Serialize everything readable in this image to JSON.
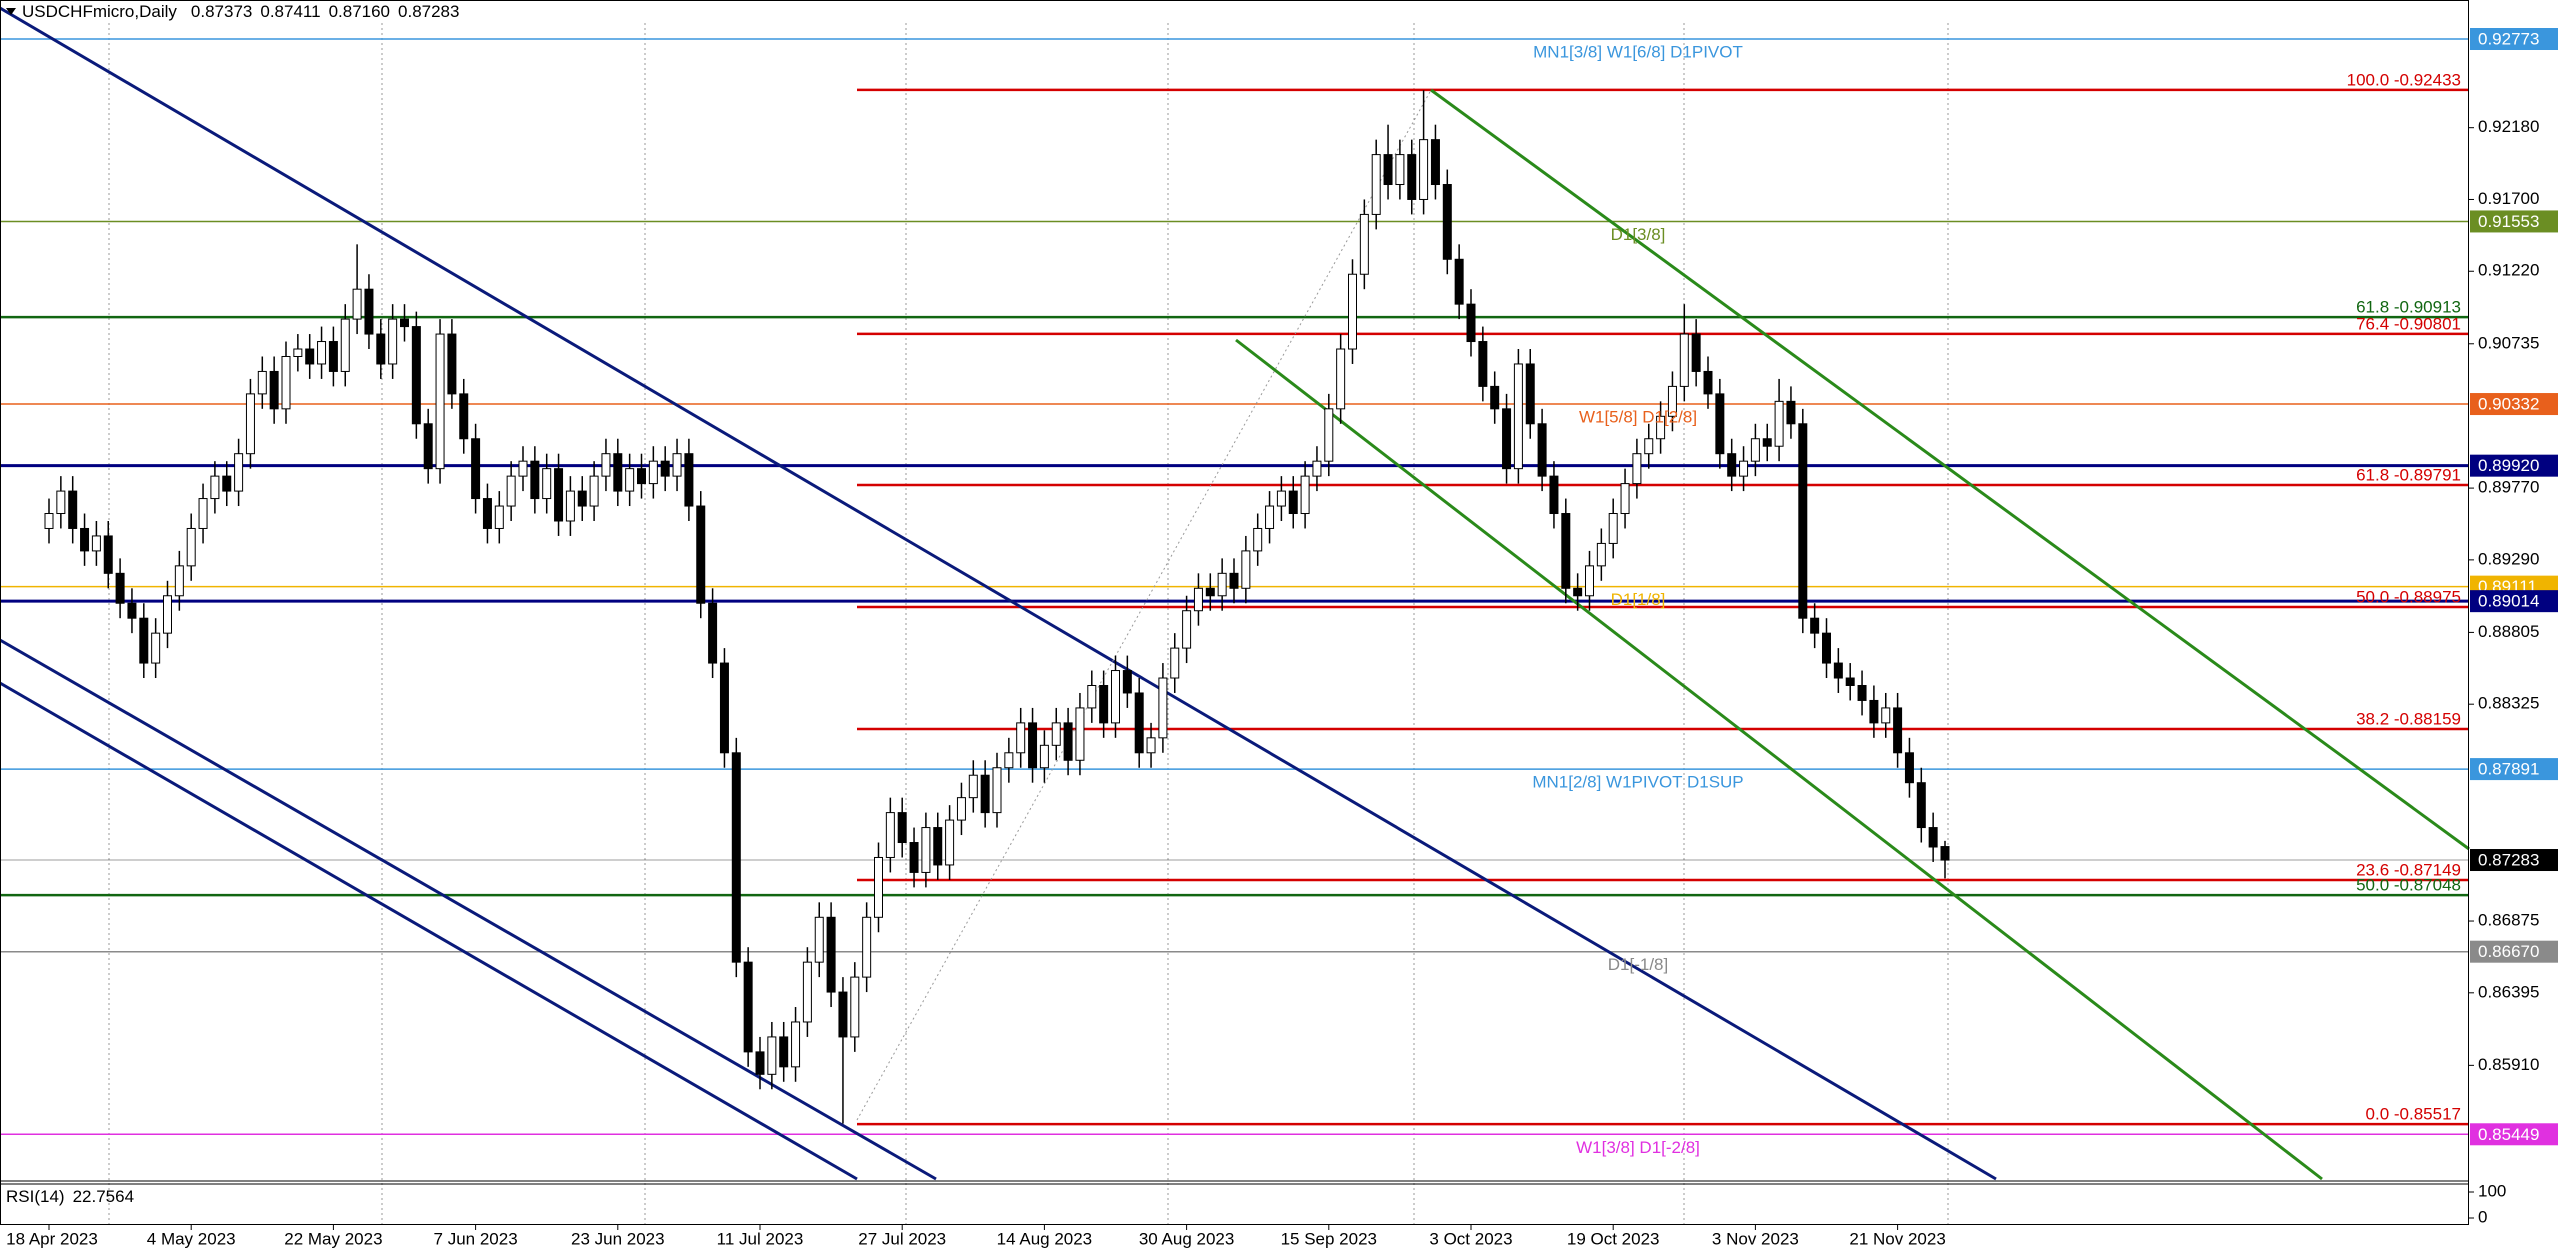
{
  "header": {
    "symbol": "USDCHFmicro,Daily",
    "ohlc": [
      "0.87373",
      "0.87411",
      "0.87160",
      "0.87283"
    ]
  },
  "chart_data": {
    "type": "candlestick",
    "ylim": [
      0.8515,
      0.9288
    ],
    "yticks": [
      {
        "value": 0.9218,
        "label": "0.92180"
      },
      {
        "value": 0.917,
        "label": "0.91700"
      },
      {
        "value": 0.9122,
        "label": "0.91220"
      },
      {
        "value": 0.90735,
        "label": "0.90735"
      },
      {
        "value": 0.8977,
        "label": "0.89770"
      },
      {
        "value": 0.8929,
        "label": "0.89290"
      },
      {
        "value": 0.88805,
        "label": "0.88805"
      },
      {
        "value": 0.88325,
        "label": "0.88325"
      },
      {
        "value": 0.86875,
        "label": "0.86875"
      },
      {
        "value": 0.86395,
        "label": "0.86395"
      },
      {
        "value": 0.8591,
        "label": "0.85910"
      }
    ],
    "categories": [
      "18 Apr 2023",
      null,
      null,
      null,
      null,
      null,
      null,
      null,
      null,
      null,
      null,
      null,
      "4 May 2023",
      null,
      null,
      null,
      null,
      null,
      null,
      null,
      null,
      null,
      null,
      null,
      "22 May 2023",
      null,
      null,
      null,
      null,
      null,
      null,
      null,
      null,
      null,
      null,
      null,
      "7 Jun 2023",
      null,
      null,
      null,
      null,
      null,
      null,
      null,
      null,
      null,
      null,
      null,
      "23 Jun 2023",
      null,
      null,
      null,
      null,
      null,
      null,
      null,
      null,
      null,
      null,
      null,
      "11 Jul 2023",
      null,
      null,
      null,
      null,
      null,
      null,
      null,
      null,
      null,
      null,
      null,
      "27 Jul 2023",
      null,
      null,
      null,
      null,
      null,
      null,
      null,
      null,
      null,
      null,
      null,
      "14 Aug 2023",
      null,
      null,
      null,
      null,
      null,
      null,
      null,
      null,
      null,
      null,
      null,
      "30 Aug 2023",
      null,
      null,
      null,
      null,
      null,
      null,
      null,
      null,
      null,
      null,
      null,
      "15 Sep 2023",
      null,
      null,
      null,
      null,
      null,
      null,
      null,
      null,
      null,
      null,
      null,
      "3 Oct 2023",
      null,
      null,
      null,
      null,
      null,
      null,
      null,
      null,
      null,
      null,
      null,
      "19 Oct 2023",
      null,
      null,
      null,
      null,
      null,
      null,
      null,
      null,
      null,
      null,
      null,
      "3 Nov 2023",
      null,
      null,
      null,
      null,
      null,
      null,
      null,
      null,
      null,
      null,
      null,
      "21 Nov 2023",
      null,
      null,
      null,
      null
    ],
    "open": [
      0.895,
      0.896,
      0.8975,
      0.895,
      0.8935,
      0.8945,
      0.892,
      0.89,
      0.889,
      0.886,
      0.888,
      0.8905,
      0.8925,
      0.895,
      0.897,
      0.8985,
      0.8975,
      0.9,
      0.904,
      0.9055,
      0.903,
      0.9065,
      0.907,
      0.906,
      0.9075,
      0.9055,
      0.909,
      0.911,
      0.908,
      0.906,
      0.909,
      0.9085,
      0.902,
      0.899,
      0.908,
      0.904,
      0.901,
      0.897,
      0.895,
      0.8965,
      0.8985,
      0.8995,
      0.897,
      0.899,
      0.8955,
      0.8975,
      0.8965,
      0.8985,
      0.9,
      0.8975,
      0.899,
      0.898,
      0.8995,
      0.8985,
      0.9,
      0.8965,
      0.89,
      0.886,
      0.88,
      0.866,
      0.86,
      0.8585,
      0.861,
      0.859,
      0.862,
      0.866,
      0.869,
      0.864,
      0.861,
      0.865,
      0.869,
      0.873,
      0.876,
      0.874,
      0.872,
      0.875,
      0.8725,
      0.8755,
      0.877,
      0.8785,
      0.876,
      0.879,
      0.88,
      0.882,
      0.879,
      0.8805,
      0.882,
      0.8795,
      0.883,
      0.8845,
      0.882,
      0.8855,
      0.884,
      0.88,
      0.881,
      0.885,
      0.887,
      0.8895,
      0.891,
      0.8905,
      0.892,
      0.891,
      0.8935,
      0.895,
      0.8965,
      0.8975,
      0.896,
      0.8985,
      0.8995,
      0.903,
      0.907,
      0.912,
      0.916,
      0.92,
      0.918,
      0.92,
      0.917,
      0.921,
      0.918,
      0.913,
      0.91,
      0.9075,
      0.9045,
      0.903,
      0.899,
      0.906,
      0.902,
      0.8985,
      0.896,
      0.891,
      0.8905,
      0.8925,
      0.894,
      0.896,
      0.898,
      0.9,
      0.901,
      0.9025,
      0.9045,
      0.908,
      0.9055,
      0.904,
      0.9,
      0.8985,
      0.8995,
      0.901,
      0.9005,
      0.9035,
      0.902,
      0.889,
      0.888,
      0.886,
      0.885,
      0.8845,
      0.8835,
      0.882,
      0.883,
      0.88,
      0.878,
      0.875,
      0.87373
    ],
    "high": [
      0.897,
      0.8985,
      0.8985,
      0.896,
      0.8955,
      0.8955,
      0.893,
      0.891,
      0.89,
      0.889,
      0.8915,
      0.8935,
      0.896,
      0.898,
      0.8995,
      0.8995,
      0.901,
      0.905,
      0.9065,
      0.9065,
      0.9075,
      0.908,
      0.908,
      0.9085,
      0.9085,
      0.91,
      0.914,
      0.912,
      0.909,
      0.91,
      0.91,
      0.9095,
      0.903,
      0.909,
      0.909,
      0.905,
      0.902,
      0.898,
      0.8975,
      0.8995,
      0.9005,
      0.9005,
      0.9,
      0.9,
      0.8985,
      0.8985,
      0.8995,
      0.901,
      0.901,
      0.9,
      0.9,
      0.9005,
      0.9005,
      0.901,
      0.901,
      0.8975,
      0.891,
      0.887,
      0.881,
      0.867,
      0.861,
      0.862,
      0.862,
      0.863,
      0.867,
      0.87,
      0.87,
      0.865,
      0.866,
      0.87,
      0.874,
      0.877,
      0.877,
      0.875,
      0.876,
      0.876,
      0.8765,
      0.878,
      0.8795,
      0.8795,
      0.88,
      0.881,
      0.883,
      0.883,
      0.8815,
      0.883,
      0.883,
      0.884,
      0.8855,
      0.8855,
      0.8865,
      0.8865,
      0.885,
      0.882,
      0.886,
      0.888,
      0.8905,
      0.892,
      0.892,
      0.893,
      0.893,
      0.8945,
      0.896,
      0.8975,
      0.8985,
      0.8985,
      0.8995,
      0.9005,
      0.904,
      0.908,
      0.913,
      0.917,
      0.921,
      0.922,
      0.921,
      0.921,
      0.9243,
      0.922,
      0.919,
      0.914,
      0.911,
      0.9085,
      0.9055,
      0.904,
      0.907,
      0.907,
      0.903,
      0.8995,
      0.897,
      0.892,
      0.8935,
      0.895,
      0.897,
      0.899,
      0.901,
      0.902,
      0.9035,
      0.9055,
      0.91,
      0.909,
      0.9065,
      0.905,
      0.901,
      0.9005,
      0.902,
      0.902,
      0.905,
      0.9045,
      0.903,
      0.89,
      0.889,
      0.887,
      0.886,
      0.8855,
      0.8845,
      0.884,
      0.884,
      0.881,
      0.879,
      0.876,
      0.87411
    ],
    "low": [
      0.894,
      0.895,
      0.894,
      0.8925,
      0.8925,
      0.891,
      0.889,
      0.888,
      0.885,
      0.885,
      0.887,
      0.8895,
      0.8915,
      0.894,
      0.896,
      0.8965,
      0.8965,
      0.899,
      0.903,
      0.902,
      0.902,
      0.9055,
      0.905,
      0.905,
      0.9045,
      0.9045,
      0.908,
      0.907,
      0.905,
      0.905,
      0.9075,
      0.901,
      0.898,
      0.898,
      0.903,
      0.9,
      0.896,
      0.894,
      0.894,
      0.8955,
      0.8975,
      0.896,
      0.896,
      0.8945,
      0.8945,
      0.8955,
      0.8955,
      0.8975,
      0.8965,
      0.8965,
      0.897,
      0.897,
      0.8975,
      0.8975,
      0.8955,
      0.889,
      0.885,
      0.879,
      0.865,
      0.859,
      0.8575,
      0.8575,
      0.858,
      0.858,
      0.861,
      0.865,
      0.863,
      0.8552,
      0.86,
      0.864,
      0.868,
      0.872,
      0.873,
      0.871,
      0.871,
      0.8715,
      0.8715,
      0.8745,
      0.876,
      0.875,
      0.875,
      0.878,
      0.879,
      0.878,
      0.878,
      0.8795,
      0.8785,
      0.8785,
      0.882,
      0.881,
      0.881,
      0.883,
      0.879,
      0.879,
      0.88,
      0.884,
      0.886,
      0.8885,
      0.8895,
      0.8895,
      0.89,
      0.89,
      0.8925,
      0.894,
      0.8955,
      0.895,
      0.895,
      0.8975,
      0.8985,
      0.902,
      0.906,
      0.911,
      0.915,
      0.917,
      0.917,
      0.916,
      0.916,
      0.917,
      0.912,
      0.909,
      0.9065,
      0.9035,
      0.902,
      0.898,
      0.898,
      0.901,
      0.8975,
      0.895,
      0.89,
      0.8895,
      0.8895,
      0.8915,
      0.893,
      0.895,
      0.897,
      0.899,
      0.9,
      0.9015,
      0.9035,
      0.9045,
      0.903,
      0.899,
      0.8975,
      0.8975,
      0.8985,
      0.8995,
      0.8995,
      0.901,
      0.888,
      0.887,
      0.885,
      0.884,
      0.8835,
      0.8825,
      0.881,
      0.881,
      0.879,
      0.877,
      0.874,
      0.8727,
      0.8716
    ],
    "close": [
      0.896,
      0.8975,
      0.895,
      0.8935,
      0.8945,
      0.892,
      0.89,
      0.889,
      0.886,
      0.888,
      0.8905,
      0.8925,
      0.895,
      0.897,
      0.8985,
      0.8975,
      0.9,
      0.904,
      0.9055,
      0.903,
      0.9065,
      0.907,
      0.906,
      0.9075,
      0.9055,
      0.909,
      0.911,
      0.908,
      0.906,
      0.909,
      0.9085,
      0.902,
      0.899,
      0.908,
      0.904,
      0.901,
      0.897,
      0.895,
      0.8965,
      0.8985,
      0.8995,
      0.897,
      0.899,
      0.8955,
      0.8975,
      0.8965,
      0.8985,
      0.9,
      0.8975,
      0.899,
      0.898,
      0.8995,
      0.8985,
      0.9,
      0.8965,
      0.89,
      0.886,
      0.88,
      0.866,
      0.86,
      0.8585,
      0.861,
      0.859,
      0.862,
      0.866,
      0.869,
      0.864,
      0.861,
      0.865,
      0.869,
      0.873,
      0.876,
      0.874,
      0.872,
      0.875,
      0.8725,
      0.8755,
      0.877,
      0.8785,
      0.876,
      0.879,
      0.88,
      0.882,
      0.879,
      0.8805,
      0.882,
      0.8795,
      0.883,
      0.8845,
      0.882,
      0.8855,
      0.884,
      0.88,
      0.881,
      0.885,
      0.887,
      0.8895,
      0.891,
      0.8905,
      0.892,
      0.891,
      0.8935,
      0.895,
      0.8965,
      0.8975,
      0.896,
      0.8985,
      0.8995,
      0.903,
      0.907,
      0.912,
      0.916,
      0.92,
      0.918,
      0.92,
      0.917,
      0.921,
      0.918,
      0.913,
      0.91,
      0.9075,
      0.9045,
      0.903,
      0.899,
      0.906,
      0.902,
      0.8985,
      0.896,
      0.891,
      0.8905,
      0.8925,
      0.894,
      0.896,
      0.898,
      0.9,
      0.901,
      0.9025,
      0.9045,
      0.908,
      0.9055,
      0.904,
      0.9,
      0.8985,
      0.8995,
      0.901,
      0.9005,
      0.9035,
      0.902,
      0.889,
      0.888,
      0.886,
      0.885,
      0.8845,
      0.8835,
      0.882,
      0.883,
      0.88,
      0.878,
      0.875,
      0.8737,
      0.87283
    ],
    "levels": [
      {
        "value": 0.92773,
        "label": "0.92773",
        "color": "#3a96dd",
        "note": "MN1[3/8] W1[6/8] D1PIVOT"
      },
      {
        "value": 0.91553,
        "label": "0.91553",
        "color": "#6b8e23",
        "note": "D1[3/8]"
      },
      {
        "value": 0.90332,
        "label": "0.90332",
        "color": "#e8601c",
        "note": "W1[5/8] D1[2/8]"
      },
      {
        "value": 0.8992,
        "label": "0.89920",
        "color": "#000080"
      },
      {
        "value": 0.89111,
        "label": "0.89111",
        "color": "#f0b400",
        "note": "D1[1/8]"
      },
      {
        "value": 0.89014,
        "label": "0.89014",
        "color": "#000080"
      },
      {
        "value": 0.87891,
        "label": "0.87891",
        "color": "#3a96dd",
        "note": "MN1[2/8] W1PIVOT D1SUP"
      },
      {
        "value": 0.87283,
        "label": "0.87283",
        "color": "#000000"
      },
      {
        "value": 0.8667,
        "label": "0.86670",
        "color": "#8a8a8a",
        "note": "D1[-1/8]"
      },
      {
        "value": 0.85449,
        "label": "0.85449",
        "color": "#e030e0",
        "note": "W1[3/8] D1[-2/8]"
      }
    ],
    "fib": [
      {
        "value": 0.92433,
        "label": "100.0 -0.92433",
        "color": "#d40000"
      },
      {
        "value": 0.90801,
        "label": "76.4 -0.90801",
        "color": "#d40000"
      },
      {
        "value": 0.89791,
        "label": "61.8 -0.89791",
        "color": "#d40000"
      },
      {
        "value": 0.88975,
        "label": "50.0 -0.88975",
        "color": "#d40000"
      },
      {
        "value": 0.88159,
        "label": "38.2 -0.88159",
        "color": "#d40000"
      },
      {
        "value": 0.87149,
        "label": "23.6 -0.87149",
        "color": "#d40000"
      },
      {
        "value": 0.85517,
        "label": "0.0 -0.85517",
        "color": "#d40000"
      }
    ],
    "fib_wide": [
      {
        "value": 0.90913,
        "label": "61.8 -0.90913",
        "color": "#116611"
      },
      {
        "value": 0.87048,
        "label": "50.0 -0.87048",
        "color": "#116611"
      }
    ],
    "rsi": {
      "label": "RSI(14)",
      "value": 22.7564,
      "ylim": [
        0,
        100
      ],
      "yticks": [
        100,
        0
      ]
    }
  }
}
